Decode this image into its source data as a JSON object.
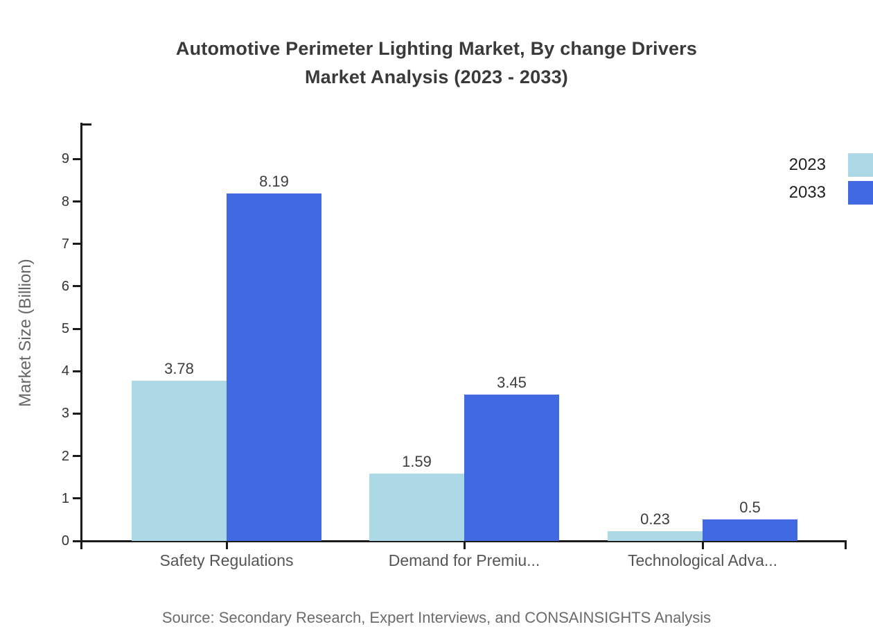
{
  "title": {
    "line1": "Automotive Perimeter Lighting Market, By change Drivers",
    "line2": "Market Analysis (2023 - 2033)"
  },
  "source": "Source: Secondary Research, Expert Interviews, and CONSAINSIGHTS Analysis",
  "chart_data": {
    "type": "bar",
    "title": "Automotive Perimeter Lighting Market, By change Drivers Market Analysis (2023 - 2033)",
    "categories": [
      "Safety Regulations",
      "Demand for Premiu...",
      "Technological Adva..."
    ],
    "series": [
      {
        "name": "2023",
        "color": "#ADD8E6",
        "values": [
          3.78,
          1.59,
          0.23
        ],
        "labels": [
          "3.78",
          "1.59",
          "0.23"
        ]
      },
      {
        "name": "2033",
        "color": "#4169E1",
        "values": [
          8.19,
          3.45,
          0.5
        ],
        "labels": [
          "8.19",
          "3.45",
          "0.5"
        ]
      }
    ],
    "xlabel": "",
    "ylabel": "Market Size (Billion)",
    "yticks": [
      "0",
      "1",
      "2",
      "3",
      "4",
      "5",
      "6",
      "7",
      "8",
      "9"
    ],
    "ylim": [
      0,
      9.85
    ],
    "grid": false,
    "legend_position": "top-right",
    "value_labels_shown": true
  },
  "legend": {
    "items": [
      {
        "label": "2023",
        "color": "#ADD8E6"
      },
      {
        "label": "2033",
        "color": "#4169E1"
      }
    ]
  }
}
